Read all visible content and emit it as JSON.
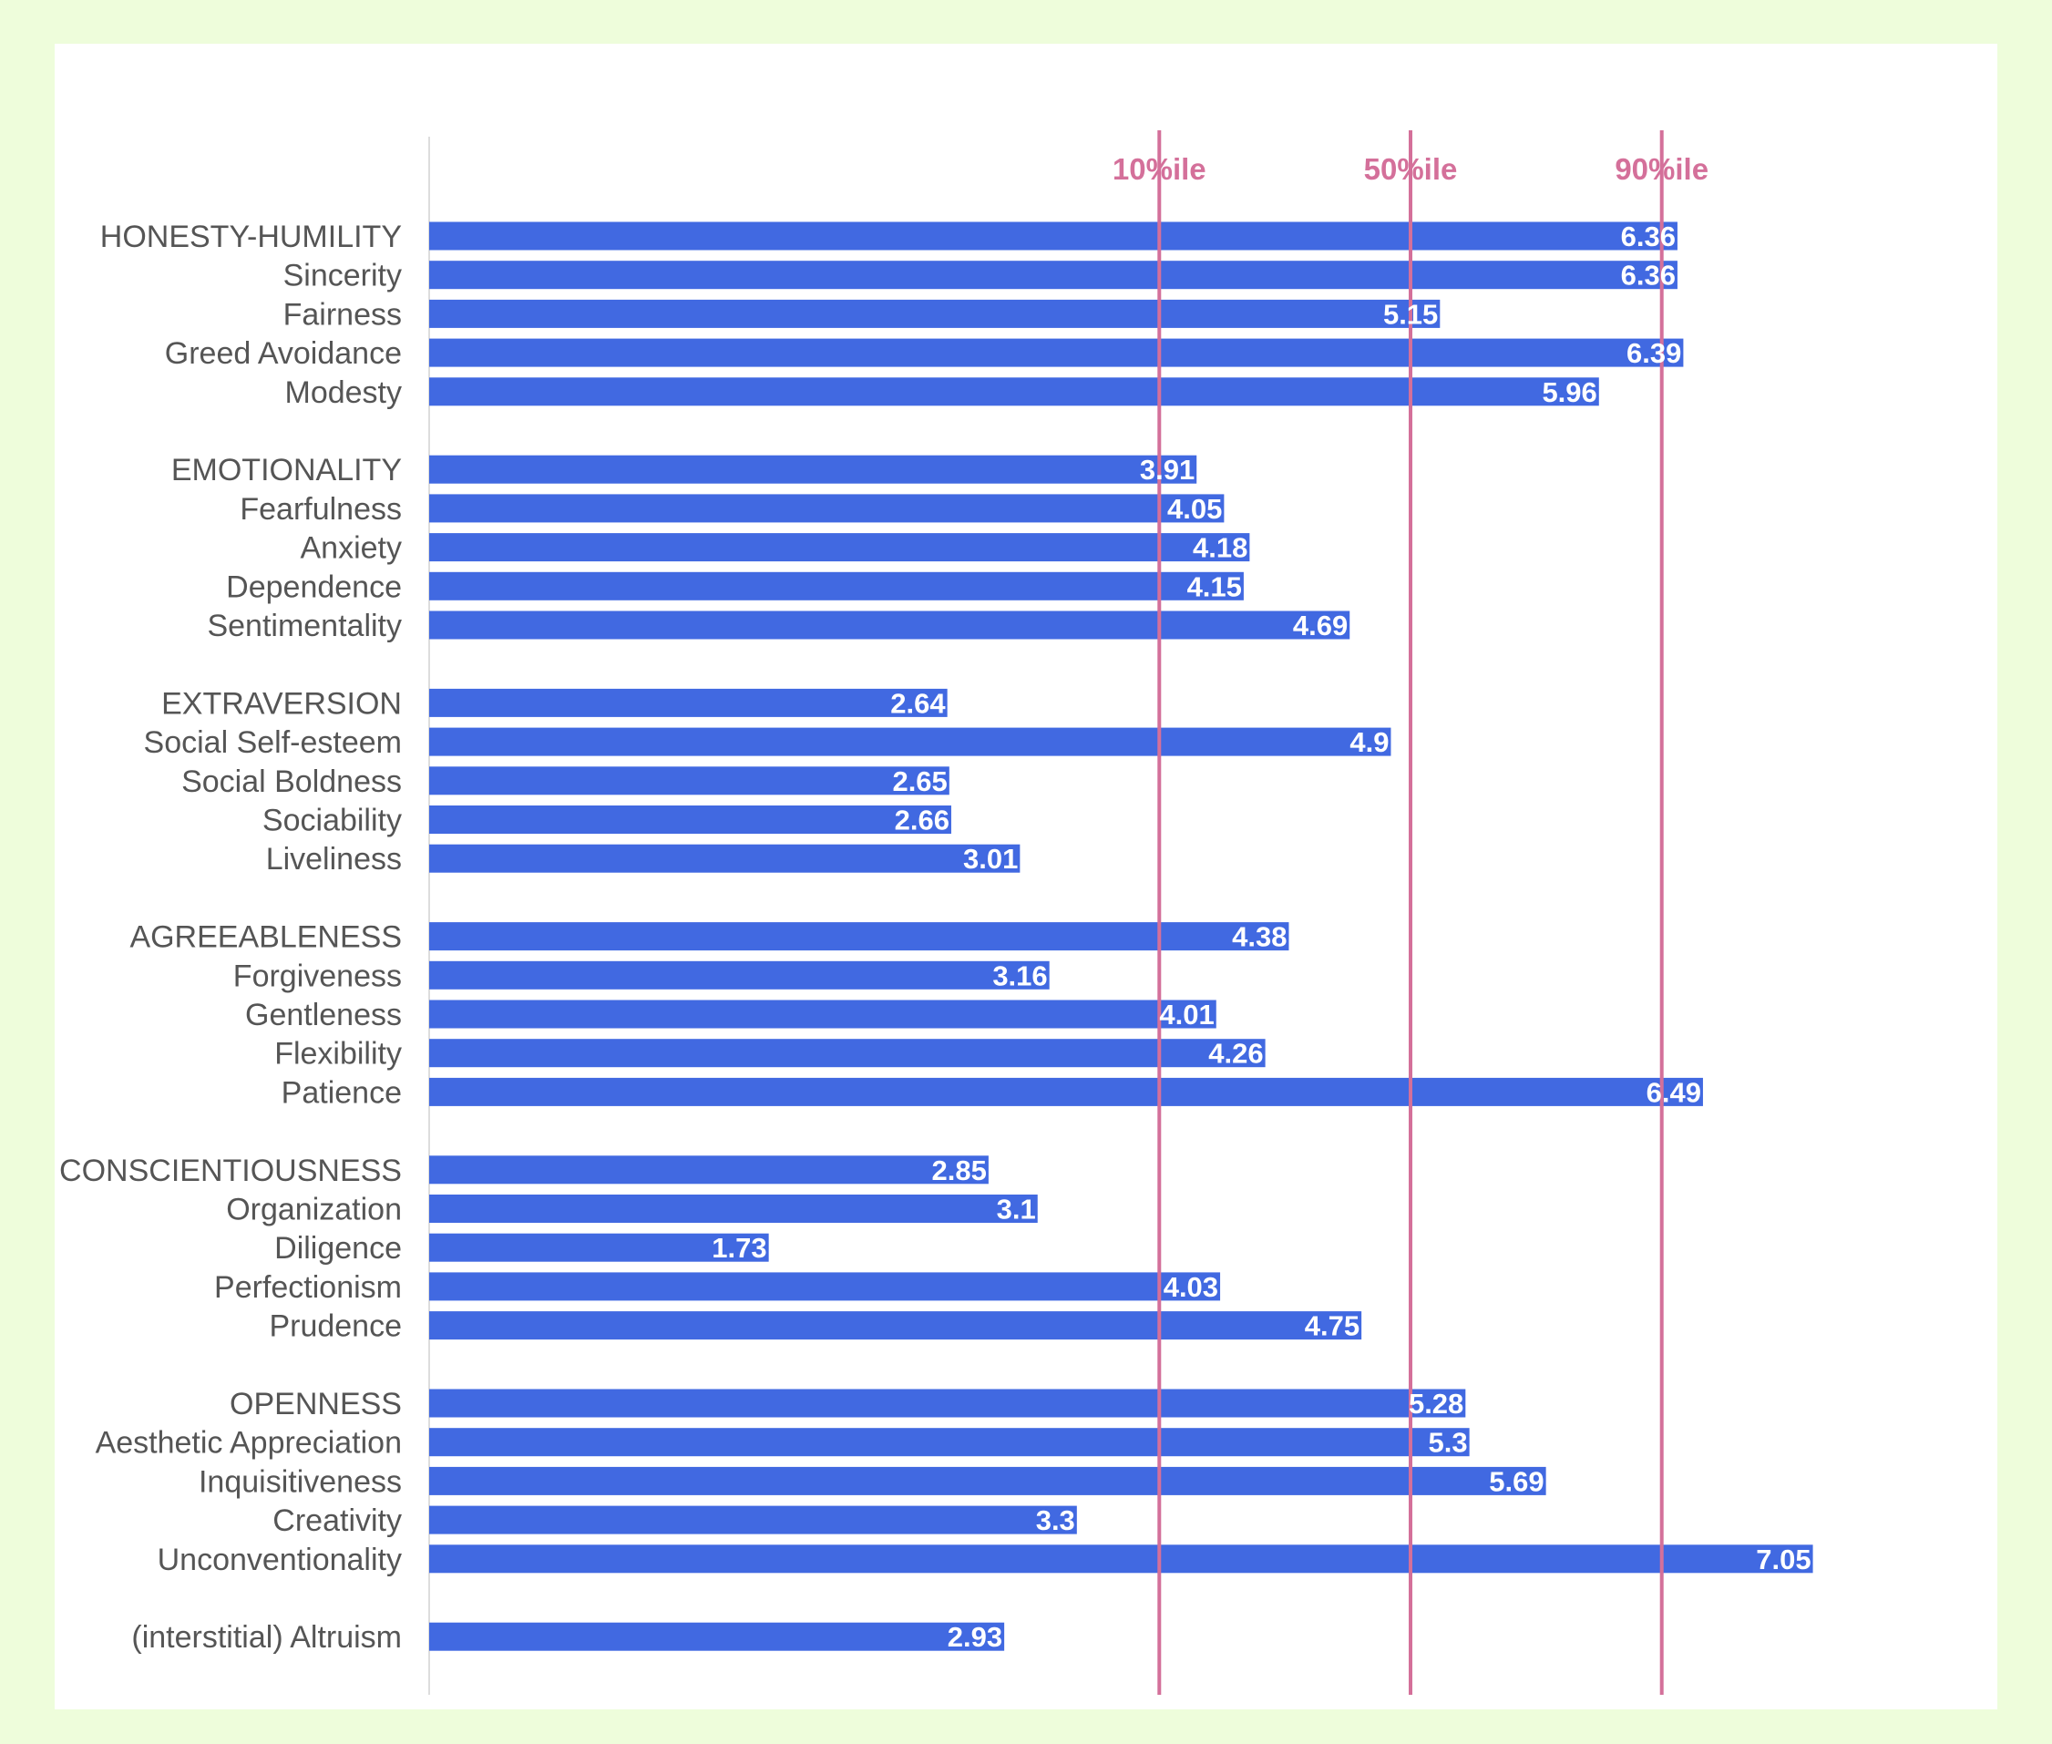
{
  "chart_data": {
    "type": "bar",
    "orientation": "horizontal",
    "categories": [
      "HONESTY-HUMILITY",
      "Sincerity",
      "Fairness",
      "Greed Avoidance",
      "Modesty",
      "EMOTIONALITY",
      "Fearfulness",
      "Anxiety",
      "Dependence",
      "Sentimentality",
      "EXTRAVERSION",
      "Social Self-esteem",
      "Social Boldness",
      "Sociability",
      "Liveliness",
      "AGREEABLENESS",
      "Forgiveness",
      "Gentleness",
      "Flexibility",
      "Patience",
      "CONSCIENTIOUSNESS",
      "Organization",
      "Diligence",
      "Perfectionism",
      "Prudence",
      "OPENNESS",
      "Aesthetic Appreciation",
      "Inquisitiveness",
      "Creativity",
      "Unconventionality",
      "(interstitial) Altruism"
    ],
    "values": [
      6.36,
      6.36,
      5.15,
      6.39,
      5.96,
      3.91,
      4.05,
      4.18,
      4.15,
      4.69,
      2.64,
      4.9,
      2.65,
      2.66,
      3.01,
      4.38,
      3.16,
      4.01,
      4.26,
      6.49,
      2.85,
      3.1,
      1.73,
      4.03,
      4.75,
      5.28,
      5.3,
      5.69,
      3.3,
      7.05,
      2.93
    ],
    "value_labels": [
      "6.36",
      "6.36",
      "5.15",
      "6.39",
      "5.96",
      "3.91",
      "4.05",
      "4.18",
      "4.15",
      "4.69",
      "2.64",
      "4.9",
      "2.65",
      "2.66",
      "3.01",
      "4.38",
      "3.16",
      "4.01",
      "4.26",
      "6.49",
      "2.85",
      "3.1",
      "1.73",
      "4.03",
      "4.75",
      "5.28",
      "5.3",
      "5.69",
      "3.3",
      "7.05",
      "2.93"
    ],
    "group_sizes": [
      5,
      5,
      5,
      5,
      5,
      5,
      1
    ],
    "xlim": [
      0,
      8.5
    ],
    "reference_lines": [
      {
        "label": "10%ile",
        "value": 3.72
      },
      {
        "label": "50%ile",
        "value": 5.0
      },
      {
        "label": "90%ile",
        "value": 6.28
      }
    ],
    "colors": {
      "bar": "#4169e1",
      "reference_line": "#d4709a",
      "reference_label": "#d4709a",
      "category_label": "#555555",
      "value_label": "#ffffff",
      "axis": "#dddddd",
      "page_background": "#eefddb",
      "card_background": "#ffffff"
    },
    "title": "",
    "xlabel": "",
    "ylabel": "",
    "grid": false,
    "legend": "none"
  }
}
